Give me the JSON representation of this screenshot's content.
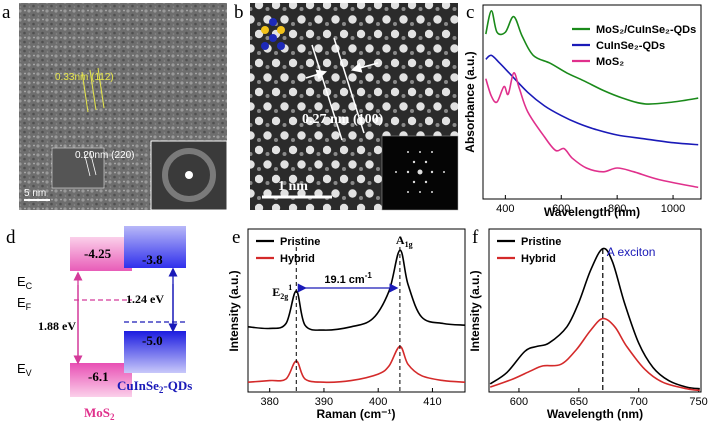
{
  "panels": {
    "a": {
      "label": "a",
      "fringe1": "0.33nm (112)",
      "fringe2": "0.20nm (220)",
      "scale": "5 nm"
    },
    "b": {
      "label": "b",
      "spacing": "0.27 nm (100)",
      "scale": "1 nm"
    },
    "c": {
      "label": "c"
    },
    "d": {
      "label": "d",
      "mos2_ec": "-4.25",
      "mos2_ev": "-6.1",
      "qd_ec": "-3.8",
      "qd_ev": "-5.0",
      "ec_label": "E",
      "ec_sub": "C",
      "ef_label": "E",
      "ef_sub": "F",
      "ev_label": "E",
      "ev_sub": "V",
      "gap_mos2": "1.88 eV",
      "gap_qd": "1.24 eV",
      "mos2_name": "MoS",
      "mos2_sub": "2",
      "qd_name": "CuInSe",
      "qd_sub": "2",
      "qd_suffix": "-QDs"
    },
    "e": {
      "label": "e",
      "e2g_label": "E",
      "e2g_sub": "2g",
      "e2g_sup": "1",
      "a1g_label": "A",
      "a1g_sub": "1g",
      "shift_label": "19.1 cm",
      "shift_sup": "-1"
    },
    "f": {
      "label": "f",
      "annotation": "A exciton"
    }
  },
  "colors": {
    "green": "#1a8a1a",
    "blue": "#1a1ab8",
    "pink": "#e0308c",
    "black": "#000000",
    "red": "#d42a2a",
    "magenta_box": "#e84fb4",
    "blue_box": "#3c3cf0"
  },
  "chart_data": [
    {
      "panel": "c",
      "type": "line",
      "title": "",
      "xlabel": "Wavelength (nm)",
      "ylabel": "Absorbance (a.u.)",
      "xlim": [
        320,
        1100
      ],
      "xticks": [
        "400",
        "600",
        "800",
        "1000"
      ],
      "legend_position": "top-right",
      "series": [
        {
          "name": "MoS₂/CuInSe₂-QDs",
          "color": "#1a8a1a",
          "points": [
            [
              330,
              0.85
            ],
            [
              350,
              0.97
            ],
            [
              370,
              0.86
            ],
            [
              400,
              0.86
            ],
            [
              430,
              0.94
            ],
            [
              460,
              0.84
            ],
            [
              500,
              0.74
            ],
            [
              560,
              0.7
            ],
            [
              620,
              0.65
            ],
            [
              680,
              0.61
            ],
            [
              750,
              0.56
            ],
            [
              820,
              0.52
            ],
            [
              900,
              0.49
            ],
            [
              1000,
              0.5
            ],
            [
              1090,
              0.52
            ]
          ]
        },
        {
          "name": "CuInSe₂-QDs",
          "color": "#1a1ab8",
          "points": [
            [
              330,
              0.72
            ],
            [
              350,
              0.74
            ],
            [
              380,
              0.7
            ],
            [
              420,
              0.64
            ],
            [
              480,
              0.55
            ],
            [
              540,
              0.48
            ],
            [
              600,
              0.43
            ],
            [
              660,
              0.39
            ],
            [
              720,
              0.36
            ],
            [
              800,
              0.33
            ],
            [
              900,
              0.31
            ],
            [
              1000,
              0.29
            ],
            [
              1090,
              0.28
            ]
          ]
        },
        {
          "name": "MoS₂",
          "color": "#e0308c",
          "points": [
            [
              330,
              0.62
            ],
            [
              350,
              0.53
            ],
            [
              370,
              0.5
            ],
            [
              395,
              0.58
            ],
            [
              410,
              0.54
            ],
            [
              430,
              0.65
            ],
            [
              450,
              0.57
            ],
            [
              480,
              0.45
            ],
            [
              540,
              0.32
            ],
            [
              580,
              0.25
            ],
            [
              610,
              0.26
            ],
            [
              640,
              0.21
            ],
            [
              690,
              0.16
            ],
            [
              750,
              0.14
            ],
            [
              800,
              0.16
            ],
            [
              860,
              0.14
            ],
            [
              950,
              0.1
            ],
            [
              1090,
              0.06
            ]
          ]
        }
      ]
    },
    {
      "panel": "e",
      "type": "line",
      "title": "",
      "xlabel": "Raman (cm⁻¹)",
      "ylabel": "Intensity (a.u.)",
      "xlim": [
        376,
        416
      ],
      "xticks": [
        "380",
        "390",
        "400",
        "410"
      ],
      "legend_position": "top-left",
      "peaks": {
        "E2g": 384.9,
        "A1g": 404.0
      },
      "series": [
        {
          "name": "Pristine",
          "color": "#000000",
          "points": [
            [
              376,
              0.4
            ],
            [
              380,
              0.39
            ],
            [
              383,
              0.42
            ],
            [
              384.9,
              0.62
            ],
            [
              386.5,
              0.41
            ],
            [
              390,
              0.38
            ],
            [
              395,
              0.4
            ],
            [
              399,
              0.45
            ],
            [
              402,
              0.62
            ],
            [
              404.0,
              0.87
            ],
            [
              405.5,
              0.66
            ],
            [
              408,
              0.46
            ],
            [
              412,
              0.42
            ],
            [
              416,
              0.41
            ]
          ]
        },
        {
          "name": "Hybrid",
          "color": "#d42a2a",
          "points": [
            [
              376,
              0.06
            ],
            [
              380,
              0.07
            ],
            [
              383,
              0.08
            ],
            [
              384.9,
              0.19
            ],
            [
              386.5,
              0.08
            ],
            [
              390,
              0.06
            ],
            [
              395,
              0.07
            ],
            [
              400,
              0.11
            ],
            [
              402,
              0.16
            ],
            [
              404.0,
              0.28
            ],
            [
              405.5,
              0.17
            ],
            [
              408,
              0.1
            ],
            [
              412,
              0.07
            ],
            [
              416,
              0.06
            ]
          ]
        }
      ]
    },
    {
      "panel": "f",
      "type": "line",
      "title": "",
      "xlabel": "Wavelength (nm)",
      "ylabel": "Intensity (a.u.)",
      "xlim": [
        575,
        752
      ],
      "xticks": [
        "600",
        "650",
        "700",
        "750"
      ],
      "legend_position": "top-left",
      "peak": 670,
      "series": [
        {
          "name": "Pristine",
          "color": "#000000",
          "points": [
            [
              576,
              0.05
            ],
            [
              590,
              0.12
            ],
            [
              605,
              0.25
            ],
            [
              615,
              0.28
            ],
            [
              625,
              0.3
            ],
            [
              640,
              0.4
            ],
            [
              650,
              0.55
            ],
            [
              660,
              0.75
            ],
            [
              670,
              0.88
            ],
            [
              678,
              0.8
            ],
            [
              688,
              0.55
            ],
            [
              700,
              0.3
            ],
            [
              712,
              0.15
            ],
            [
              725,
              0.07
            ],
            [
              740,
              0.03
            ],
            [
              751,
              0.02
            ]
          ]
        },
        {
          "name": "Hybrid",
          "color": "#d42a2a",
          "points": [
            [
              576,
              0.03
            ],
            [
              595,
              0.08
            ],
            [
              610,
              0.13
            ],
            [
              620,
              0.16
            ],
            [
              635,
              0.17
            ],
            [
              648,
              0.26
            ],
            [
              660,
              0.38
            ],
            [
              670,
              0.45
            ],
            [
              680,
              0.4
            ],
            [
              690,
              0.28
            ],
            [
              705,
              0.14
            ],
            [
              720,
              0.06
            ],
            [
              740,
              0.02
            ],
            [
              751,
              0.01
            ]
          ]
        }
      ]
    }
  ]
}
